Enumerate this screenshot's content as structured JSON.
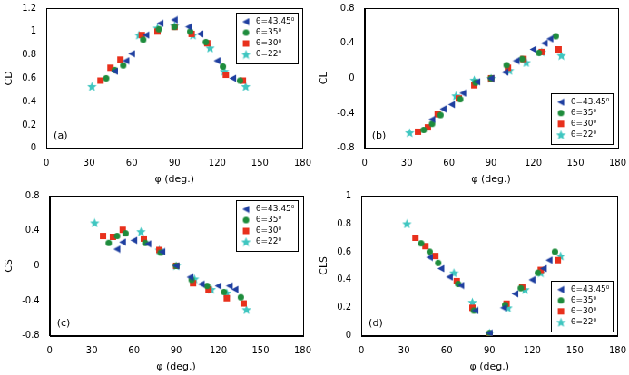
{
  "chart_data": [
    {
      "type": "scatter",
      "annotation": "(a)",
      "x_label": "φ (deg.)",
      "y_label": "CD",
      "xlim": [
        0,
        180
      ],
      "xticks": [
        0,
        30,
        60,
        90,
        120,
        150,
        180
      ],
      "ylim": [
        0,
        1.2
      ],
      "yticks": [
        0,
        0.2,
        0.4,
        0.6,
        0.8,
        1,
        1.2
      ],
      "grid": false,
      "legend": "upper right",
      "series": [
        {
          "name": "θ=43.45⁰",
          "color": "#1f3fa0",
          "marker": "triangle-left",
          "x": [
            48,
            56,
            60,
            70,
            80,
            90,
            100,
            108,
            120,
            131
          ],
          "values": [
            0.66,
            0.75,
            0.81,
            0.97,
            1.07,
            1.1,
            1.04,
            0.98,
            0.75,
            0.6
          ]
        },
        {
          "name": "θ=35⁰",
          "color": "#1e8c3c",
          "marker": "circle",
          "x": [
            42,
            48,
            54,
            68,
            79,
            90,
            101,
            112,
            124,
            136
          ],
          "values": [
            0.6,
            0.67,
            0.71,
            0.93,
            1.02,
            1.04,
            1.0,
            0.91,
            0.7,
            0.58
          ]
        },
        {
          "name": "θ=30⁰",
          "color": "#e8301c",
          "marker": "square",
          "x": [
            38,
            45,
            52,
            67,
            78,
            90,
            102,
            113,
            126,
            138
          ],
          "values": [
            0.58,
            0.69,
            0.76,
            0.97,
            1.0,
            1.04,
            0.98,
            0.9,
            0.63,
            0.58
          ]
        },
        {
          "name": "θ=22⁰",
          "color": "#3fc6c0",
          "marker": "star",
          "x": [
            32,
            65,
            78,
            90,
            103,
            115,
            125,
            140
          ],
          "values": [
            0.53,
            0.97,
            1.03,
            1.05,
            0.97,
            0.86,
            0.66,
            0.53
          ]
        }
      ]
    },
    {
      "type": "scatter",
      "annotation": "(b)",
      "x_label": "φ (deg.)",
      "y_label": "CL",
      "xlim": [
        0,
        180
      ],
      "xticks": [
        0,
        30,
        60,
        90,
        120,
        150,
        180
      ],
      "ylim": [
        -0.8,
        0.8
      ],
      "yticks": [
        -0.8,
        -0.4,
        0,
        0.4,
        0.8
      ],
      "grid": false,
      "legend": "lower right",
      "series": [
        {
          "name": "θ=43.45⁰",
          "color": "#1f3fa0",
          "marker": "triangle-left",
          "x": [
            48,
            56,
            62,
            70,
            80,
            90,
            100,
            108,
            120,
            128,
            132
          ],
          "values": [
            -0.47,
            -0.35,
            -0.3,
            -0.17,
            -0.04,
            0.0,
            0.07,
            0.2,
            0.33,
            0.4,
            0.45
          ]
        },
        {
          "name": "θ=35⁰",
          "color": "#1e8c3c",
          "marker": "circle",
          "x": [
            42,
            48,
            54,
            68,
            79,
            90,
            101,
            112,
            124,
            136
          ],
          "values": [
            -0.59,
            -0.52,
            -0.42,
            -0.24,
            -0.05,
            0.0,
            0.15,
            0.22,
            0.29,
            0.48
          ]
        },
        {
          "name": "θ=30⁰",
          "color": "#e8301c",
          "marker": "square",
          "x": [
            38,
            45,
            52,
            67,
            78,
            90,
            102,
            113,
            126,
            138
          ],
          "values": [
            -0.61,
            -0.56,
            -0.41,
            -0.23,
            -0.08,
            0.0,
            0.12,
            0.22,
            0.3,
            0.33
          ]
        },
        {
          "name": "θ=22⁰",
          "color": "#3fc6c0",
          "marker": "star",
          "x": [
            32,
            65,
            78,
            90,
            103,
            115,
            126,
            140
          ],
          "values": [
            -0.62,
            -0.2,
            -0.02,
            0.0,
            0.09,
            0.18,
            0.3,
            0.26
          ]
        }
      ]
    },
    {
      "type": "scatter",
      "annotation": "(c)",
      "x_label": "φ (deg.)",
      "y_label": "CS",
      "xlim": [
        0,
        180
      ],
      "xticks": [
        0,
        30,
        60,
        90,
        120,
        150,
        180
      ],
      "ylim": [
        -0.8,
        0.8
      ],
      "yticks": [
        -0.8,
        -0.4,
        0,
        0.4,
        0.8
      ],
      "grid": false,
      "legend": "upper right",
      "series": [
        {
          "name": "θ=43.45⁰",
          "color": "#1f3fa0",
          "marker": "triangle-left",
          "x": [
            48,
            52,
            60,
            70,
            80,
            90,
            100,
            108,
            120,
            128,
            132
          ],
          "values": [
            0.19,
            0.27,
            0.29,
            0.25,
            0.16,
            0.0,
            -0.13,
            -0.21,
            -0.23,
            -0.23,
            -0.27
          ]
        },
        {
          "name": "θ=35⁰",
          "color": "#1e8c3c",
          "marker": "circle",
          "x": [
            42,
            48,
            54,
            68,
            79,
            90,
            101,
            112,
            124,
            136
          ],
          "values": [
            0.26,
            0.34,
            0.37,
            0.26,
            0.15,
            0.0,
            -0.16,
            -0.23,
            -0.3,
            -0.36
          ]
        },
        {
          "name": "θ=30⁰",
          "color": "#e8301c",
          "marker": "square",
          "x": [
            38,
            45,
            52,
            67,
            78,
            90,
            102,
            113,
            126,
            138
          ],
          "values": [
            0.34,
            0.33,
            0.41,
            0.31,
            0.18,
            0.0,
            -0.2,
            -0.27,
            -0.37,
            -0.43
          ]
        },
        {
          "name": "θ=22⁰",
          "color": "#3fc6c0",
          "marker": "star",
          "x": [
            32,
            65,
            78,
            90,
            103,
            115,
            126,
            140
          ],
          "values": [
            0.49,
            0.39,
            0.18,
            0.0,
            -0.15,
            -0.27,
            -0.31,
            -0.5
          ]
        }
      ]
    },
    {
      "type": "scatter",
      "annotation": "(d)",
      "x_label": "φ (deg.)",
      "y_label": "CLS",
      "xlim": [
        0,
        180
      ],
      "xticks": [
        0,
        30,
        60,
        90,
        120,
        150,
        180
      ],
      "ylim": [
        0,
        1
      ],
      "yticks": [
        0,
        0.2,
        0.4,
        0.6,
        0.8,
        1
      ],
      "grid": false,
      "legend": "lower right",
      "series": [
        {
          "name": "θ=43.45⁰",
          "color": "#1f3fa0",
          "marker": "triangle-left",
          "x": [
            48,
            56,
            62,
            70,
            80,
            90,
            100,
            108,
            120,
            128,
            132
          ],
          "values": [
            0.56,
            0.48,
            0.42,
            0.36,
            0.18,
            0.02,
            0.2,
            0.3,
            0.4,
            0.48,
            0.54
          ]
        },
        {
          "name": "θ=35⁰",
          "color": "#1e8c3c",
          "marker": "circle",
          "x": [
            42,
            48,
            54,
            68,
            79,
            90,
            101,
            112,
            124,
            136
          ],
          "values": [
            0.66,
            0.6,
            0.52,
            0.37,
            0.18,
            0.02,
            0.22,
            0.34,
            0.45,
            0.6
          ]
        },
        {
          "name": "θ=30⁰",
          "color": "#e8301c",
          "marker": "square",
          "x": [
            38,
            45,
            52,
            67,
            78,
            90,
            102,
            113,
            126,
            138
          ],
          "values": [
            0.7,
            0.64,
            0.57,
            0.39,
            0.2,
            0.01,
            0.23,
            0.35,
            0.47,
            0.54
          ]
        },
        {
          "name": "θ=22⁰",
          "color": "#3fc6c0",
          "marker": "star",
          "x": [
            32,
            65,
            78,
            90,
            103,
            115,
            126,
            140
          ],
          "values": [
            0.8,
            0.45,
            0.24,
            0.02,
            0.2,
            0.33,
            0.45,
            0.57
          ]
        }
      ]
    }
  ]
}
